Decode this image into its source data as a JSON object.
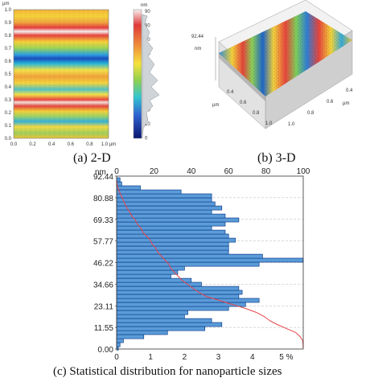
{
  "figure": {
    "panel_a": {
      "caption": "(a) 2-D",
      "axis_unit": "µm",
      "y_ticks": [
        "1.0",
        "0.9",
        "0.8",
        "0.7",
        "0.6",
        "0.5",
        "0.4",
        "0.3",
        "0.2",
        "0.1",
        "0.0"
      ],
      "x_ticks": [
        "0.0",
        "0.2",
        "0.4",
        "0.6",
        "0.8",
        "1.0 µm"
      ],
      "colorbar_unit": "nm",
      "colorbar_ticks": [
        "90",
        "80",
        "70",
        "60",
        "50",
        "40",
        "30",
        "20",
        "10",
        "0"
      ]
    },
    "panel_b": {
      "caption": "(b) 3-D",
      "z_max": "92.44",
      "z_unit": "nm",
      "axis_unit": "µm",
      "left_ticks": [
        "0.4",
        "0.6",
        "0.8",
        "1.0"
      ],
      "right_ticks": [
        "0.4",
        "0.6",
        "0.8",
        "1.0"
      ]
    },
    "panel_c": {
      "caption": "(c) Statistical distribution for nanoparticle sizes",
      "y_unit": "nm"
    }
  },
  "chart_data": {
    "type": "bar",
    "orientation": "horizontal",
    "ylabel": "nm",
    "y_ticks": [
      "92.44",
      "80.88",
      "69.33",
      "57.77",
      "46.22",
      "34.66",
      "23.11",
      "11.55",
      "0.00"
    ],
    "ylim": [
      0,
      92.44
    ],
    "bottom_axis": {
      "ticks": [
        "0",
        "1",
        "2",
        "3",
        "4",
        "5 %"
      ],
      "range": [
        0,
        5.5
      ]
    },
    "top_axis": {
      "ticks": [
        "0",
        "20",
        "40",
        "60",
        "80",
        "100"
      ],
      "range": [
        0,
        100
      ]
    },
    "bin_width": 2.15,
    "bin_centers": [
      0.5,
      2.3,
      4.5,
      6.6,
      8.8,
      10.9,
      13.1,
      15.2,
      17.4,
      19.5,
      21.7,
      23.8,
      26.0,
      28.1,
      30.3,
      32.4,
      34.6,
      36.7,
      38.9,
      41.0,
      43.2,
      45.3,
      47.5,
      49.6,
      51.8,
      53.9,
      56.1,
      58.2,
      60.4,
      62.5,
      64.7,
      66.8,
      69.0,
      71.1,
      73.3,
      75.4,
      77.6,
      79.7,
      81.9,
      84.0,
      86.2,
      88.3,
      90.5
    ],
    "series": [
      {
        "values": [
          0.05,
          0.1,
          0.2,
          0.8,
          1.5,
          2.6,
          3.1,
          2.8,
          2.0,
          2.1,
          3.3,
          3.8,
          4.2,
          3.6,
          3.7,
          3.6,
          2.5,
          2.2,
          1.6,
          1.8,
          2.0,
          4.2,
          5.5,
          4.3,
          3.3,
          3.3,
          3.3,
          3.5,
          3.3,
          3.2,
          2.8,
          3.2,
          3.6,
          3.2,
          2.8,
          3.1,
          2.9,
          2.8,
          2.8,
          1.9,
          0.7,
          0.15,
          0.1
        ]
      },
      {
        "values": [
          100,
          99.9,
          99.7,
          98.3,
          96,
          91,
          86,
          82,
          79,
          75,
          69,
          62,
          55,
          48,
          44,
          41,
          38,
          35,
          33,
          31,
          29,
          28,
          26,
          24,
          22,
          21,
          19,
          18,
          16,
          14,
          13,
          11,
          10,
          8,
          7,
          5.5,
          4.5,
          3.5,
          2.5,
          1.5,
          0.7,
          0.2,
          0
        ]
      }
    ],
    "colors": {
      "bars": "#5a9bd8",
      "bar_edge": "#0f3f8c",
      "cumulative_line": "#e8454a",
      "grid": "#b5b5b5"
    }
  }
}
